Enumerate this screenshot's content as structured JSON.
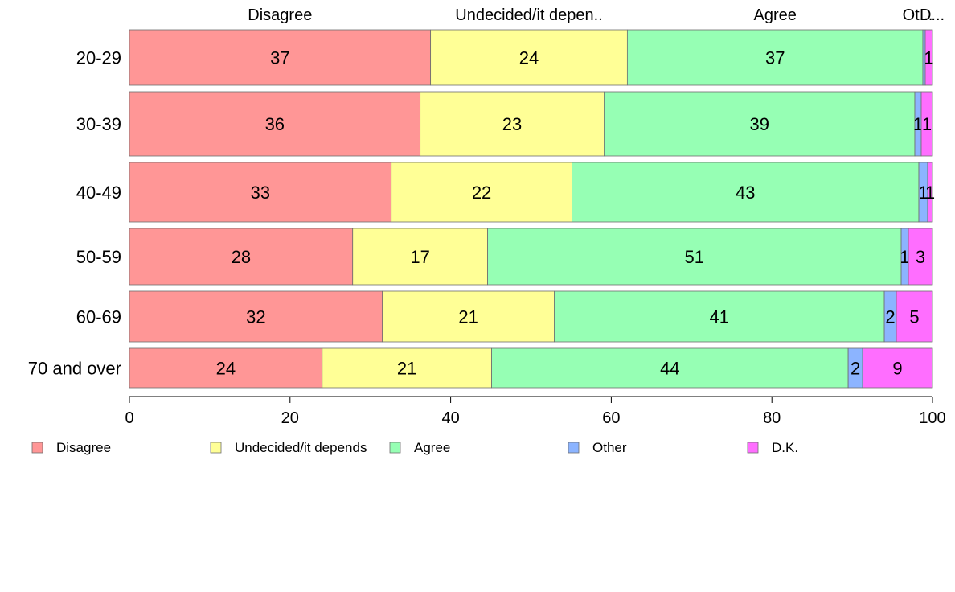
{
  "chart_data": {
    "type": "bar",
    "orientation": "horizontal",
    "stacked": true,
    "categories": [
      "20-29",
      "30-39",
      "40-49",
      "50-59",
      "60-69",
      "70 and over"
    ],
    "series": [
      {
        "name": "Disagree",
        "color": "#ff9696",
        "values": [
          37.5,
          36.2,
          32.6,
          27.8,
          31.5,
          24.0
        ]
      },
      {
        "name": "Undecided/it depends",
        "color": "#ffff96",
        "values": [
          24.5,
          22.9,
          22.5,
          16.8,
          21.4,
          21.1
        ]
      },
      {
        "name": "Agree",
        "color": "#96ffb4",
        "values": [
          36.8,
          38.7,
          43.2,
          51.5,
          41.1,
          44.4
        ]
      },
      {
        "name": "Other",
        "color": "#8cb4ff",
        "values": [
          0.3,
          0.8,
          1.1,
          0.9,
          1.5,
          1.8
        ]
      },
      {
        "name": "D.K.",
        "color": "#ff6eff",
        "values": [
          0.9,
          1.4,
          0.6,
          3.0,
          4.5,
          8.7
        ]
      }
    ],
    "bar_labels": [
      [
        "37",
        "24",
        "37",
        "",
        "1"
      ],
      [
        "36",
        "23",
        "39",
        "1",
        "1"
      ],
      [
        "33",
        "22",
        "43",
        "1",
        "1"
      ],
      [
        "28",
        "17",
        "51",
        "1",
        "3"
      ],
      [
        "32",
        "21",
        "41",
        "2",
        "5"
      ],
      [
        "24",
        "21",
        "44",
        "2",
        "9"
      ]
    ],
    "top_labels": [
      "Disagree",
      "Undecided/it depen..",
      "Agree",
      "Ot...",
      "D..."
    ],
    "xlim": [
      0,
      100
    ],
    "xticks": [
      "0",
      "20",
      "40",
      "60",
      "80",
      "100"
    ],
    "legend": {
      "position": "bottom",
      "entries": [
        "Disagree",
        "Undecided/it depends",
        "Agree",
        "Other",
        "D.K."
      ]
    },
    "grid": false
  }
}
